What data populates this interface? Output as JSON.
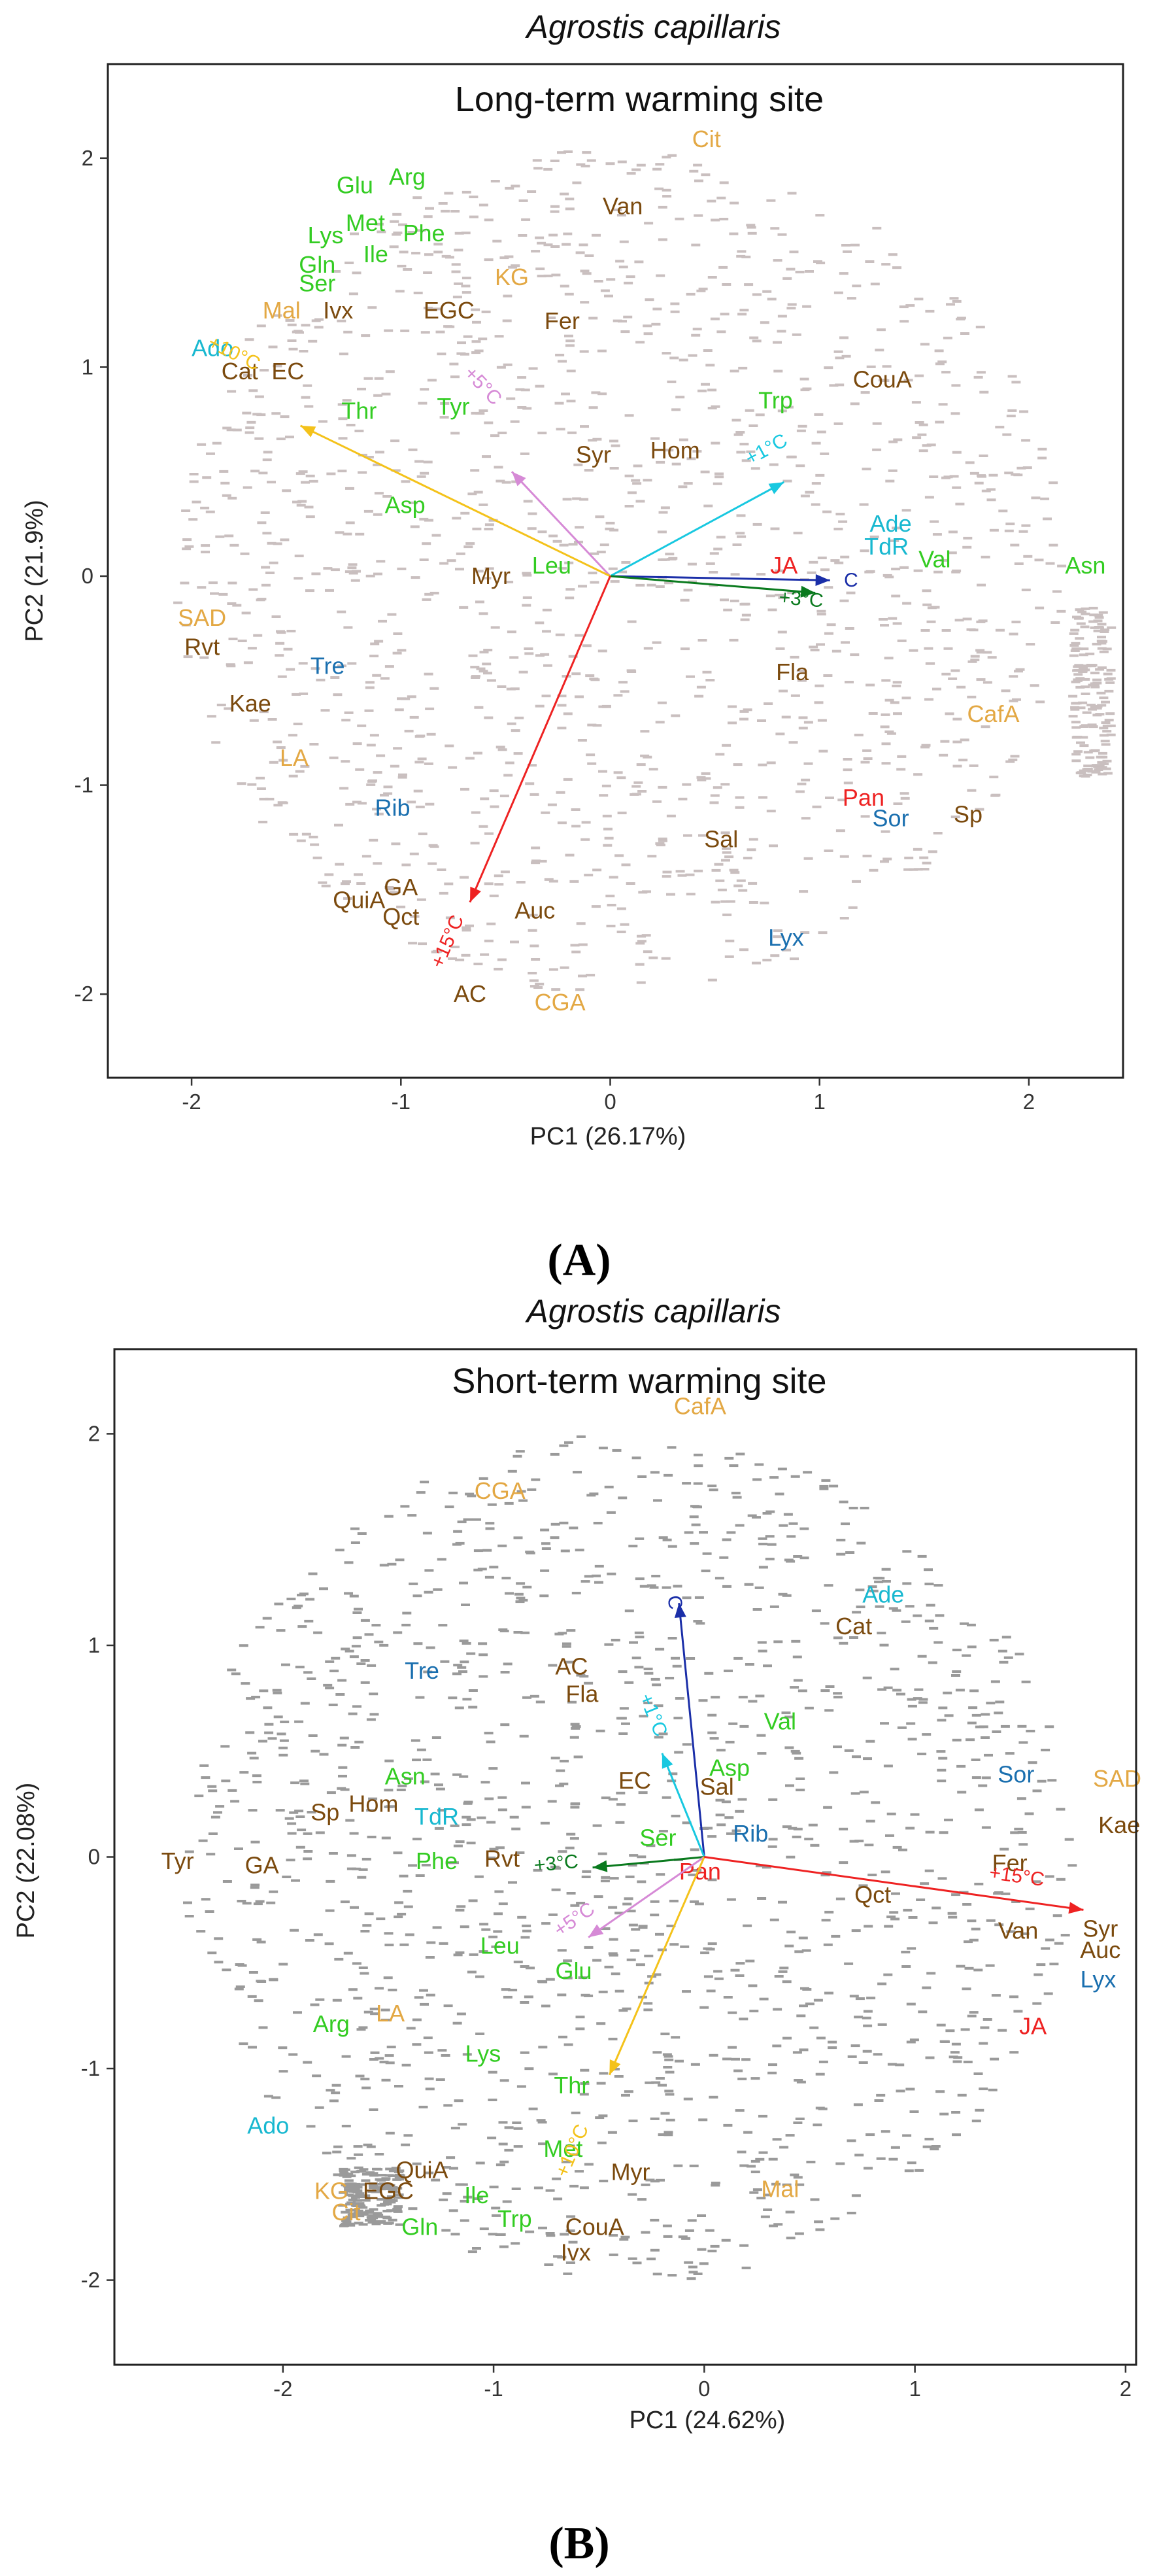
{
  "chart_data": [
    {
      "panel": "(A)",
      "type": "scatter",
      "title": "Agrostis capillaris",
      "subtitle": "Long-term warming site",
      "xlabel": "PC1 (26.17%)",
      "ylabel": "PC2 (21.9%)",
      "xlim": [
        -2.4,
        2.45
      ],
      "ylim": [
        -2.4,
        2.45
      ],
      "xticks": [
        -2,
        -1,
        0,
        1,
        2
      ],
      "yticks": [
        -2,
        -1,
        0,
        1,
        2
      ],
      "vectors": [
        {
          "label": "C",
          "x": 1.05,
          "y": -0.02,
          "color": "#1a2ea8",
          "labelX": 1.15,
          "labelY": -0.05
        },
        {
          "label": "+1°C",
          "x": 0.83,
          "y": 0.45,
          "color": "#18c8e0",
          "labelX": 0.76,
          "labelY": 0.58
        },
        {
          "label": "+3°C",
          "x": 0.98,
          "y": -0.08,
          "color": "#0a7a1e",
          "labelX": 0.91,
          "labelY": -0.14
        },
        {
          "label": "+5°C",
          "x": -0.47,
          "y": 0.5,
          "color": "#d68ad6",
          "labelX": -0.63,
          "labelY": 0.89
        },
        {
          "label": "+10°C",
          "x": -1.48,
          "y": 0.72,
          "color": "#f4c21a",
          "labelX": -1.81,
          "labelY": 1.04
        },
        {
          "label": "+15°C",
          "x": -0.67,
          "y": -1.56,
          "color": "#ee2222",
          "labelX": -0.75,
          "labelY": -1.76
        }
      ],
      "variables": [
        {
          "label": "Cit",
          "x": 0.46,
          "y": 2.09,
          "color": "#e3a844"
        },
        {
          "label": "Van",
          "x": 0.06,
          "y": 1.77,
          "color": "#7b4a0e"
        },
        {
          "label": "Glu",
          "x": -1.22,
          "y": 1.87,
          "color": "#33cc22"
        },
        {
          "label": "Arg",
          "x": -0.97,
          "y": 1.91,
          "color": "#33cc22"
        },
        {
          "label": "Met",
          "x": -1.17,
          "y": 1.69,
          "color": "#33cc22"
        },
        {
          "label": "Lys",
          "x": -1.36,
          "y": 1.63,
          "color": "#33cc22"
        },
        {
          "label": "Phe",
          "x": -0.89,
          "y": 1.64,
          "color": "#33cc22"
        },
        {
          "label": "Ile",
          "x": -1.12,
          "y": 1.54,
          "color": "#33cc22"
        },
        {
          "label": "Gln",
          "x": -1.4,
          "y": 1.49,
          "color": "#33cc22"
        },
        {
          "label": "Ser",
          "x": -1.4,
          "y": 1.4,
          "color": "#33cc22"
        },
        {
          "label": "KG",
          "x": -0.47,
          "y": 1.43,
          "color": "#e3a844"
        },
        {
          "label": "Mal",
          "x": -1.57,
          "y": 1.27,
          "color": "#e3a844"
        },
        {
          "label": "Ivx",
          "x": -1.3,
          "y": 1.27,
          "color": "#7b4a0e"
        },
        {
          "label": "EGC",
          "x": -0.77,
          "y": 1.27,
          "color": "#7b4a0e"
        },
        {
          "label": "Fer",
          "x": -0.23,
          "y": 1.22,
          "color": "#7b4a0e"
        },
        {
          "label": "Ado",
          "x": -1.9,
          "y": 1.09,
          "color": "#18b8d0"
        },
        {
          "label": "Cat",
          "x": -1.77,
          "y": 0.98,
          "color": "#7b4a0e"
        },
        {
          "label": "EC",
          "x": -1.54,
          "y": 0.98,
          "color": "#7b4a0e"
        },
        {
          "label": "CouA",
          "x": 1.3,
          "y": 0.94,
          "color": "#7b4a0e"
        },
        {
          "label": "Trp",
          "x": 0.79,
          "y": 0.84,
          "color": "#33cc22"
        },
        {
          "label": "Thr",
          "x": -1.2,
          "y": 0.79,
          "color": "#33cc22"
        },
        {
          "label": "Tyr",
          "x": -0.75,
          "y": 0.81,
          "color": "#33cc22"
        },
        {
          "label": "Syr",
          "x": -0.08,
          "y": 0.58,
          "color": "#7b4a0e"
        },
        {
          "label": "Hom",
          "x": 0.31,
          "y": 0.6,
          "color": "#7b4a0e"
        },
        {
          "label": "Asp",
          "x": -0.98,
          "y": 0.34,
          "color": "#33cc22"
        },
        {
          "label": "Ade",
          "x": 1.34,
          "y": 0.25,
          "color": "#18b8d0"
        },
        {
          "label": "TdR",
          "x": 1.32,
          "y": 0.14,
          "color": "#18b8d0"
        },
        {
          "label": "Val",
          "x": 1.55,
          "y": 0.08,
          "color": "#33cc22"
        },
        {
          "label": "Asn",
          "x": 2.27,
          "y": 0.05,
          "color": "#33cc22"
        },
        {
          "label": "Leu",
          "x": -0.28,
          "y": 0.05,
          "color": "#33cc22"
        },
        {
          "label": "JA",
          "x": 0.83,
          "y": 0.05,
          "color": "#ee2222"
        },
        {
          "label": "Myr",
          "x": -0.57,
          "y": 0.0,
          "color": "#7b4a0e"
        },
        {
          "label": "SAD",
          "x": -1.95,
          "y": -0.2,
          "color": "#e3a844"
        },
        {
          "label": "Rvt",
          "x": -1.95,
          "y": -0.34,
          "color": "#7b4a0e"
        },
        {
          "label": "Tre",
          "x": -1.35,
          "y": -0.43,
          "color": "#1a6faf"
        },
        {
          "label": "Fla",
          "x": 0.87,
          "y": -0.46,
          "color": "#7b4a0e"
        },
        {
          "label": "Kae",
          "x": -1.72,
          "y": -0.61,
          "color": "#7b4a0e"
        },
        {
          "label": "CafA",
          "x": 1.83,
          "y": -0.66,
          "color": "#e3a844"
        },
        {
          "label": "LA",
          "x": -1.51,
          "y": -0.87,
          "color": "#e3a844"
        },
        {
          "label": "Pan",
          "x": 1.21,
          "y": -1.06,
          "color": "#ee2222"
        },
        {
          "label": "Sor",
          "x": 1.34,
          "y": -1.16,
          "color": "#1a6faf"
        },
        {
          "label": "Sp",
          "x": 1.71,
          "y": -1.14,
          "color": "#7b4a0e"
        },
        {
          "label": "Rib",
          "x": -1.04,
          "y": -1.11,
          "color": "#1a6faf"
        },
        {
          "label": "Sal",
          "x": 0.53,
          "y": -1.26,
          "color": "#7b4a0e"
        },
        {
          "label": "GA",
          "x": -1.0,
          "y": -1.49,
          "color": "#7b4a0e"
        },
        {
          "label": "QuiA",
          "x": -1.2,
          "y": -1.55,
          "color": "#7b4a0e"
        },
        {
          "label": "Qct",
          "x": -1.0,
          "y": -1.63,
          "color": "#7b4a0e"
        },
        {
          "label": "Auc",
          "x": -0.36,
          "y": -1.6,
          "color": "#7b4a0e"
        },
        {
          "label": "Lyx",
          "x": 0.84,
          "y": -1.73,
          "color": "#1a6faf"
        },
        {
          "label": "AC",
          "x": -0.67,
          "y": -2.0,
          "color": "#7b4a0e"
        },
        {
          "label": "CGA",
          "x": -0.24,
          "y": -2.04,
          "color": "#e3a844"
        }
      ]
    },
    {
      "panel": "(B)",
      "type": "scatter",
      "title": "Agrostis capillaris",
      "subtitle": "Short-term warming site",
      "xlabel": "PC1 (24.62%)",
      "ylabel": "PC2 (22.08%)",
      "xlim": [
        -2.8,
        2.05
      ],
      "ylim": [
        -2.4,
        2.4
      ],
      "xticks": [
        -2,
        -1,
        0,
        1,
        2
      ],
      "yticks": [
        -2,
        -1,
        0,
        1,
        2
      ],
      "vectors": [
        {
          "label": "C",
          "x": -0.12,
          "y": 1.2,
          "color": "#1a2ea8",
          "labelX": -0.17,
          "labelY": 1.2
        },
        {
          "label": "+1°C",
          "x": -0.2,
          "y": 0.49,
          "color": "#18c8e0",
          "labelX": -0.27,
          "labelY": 0.66
        },
        {
          "label": "+3°C",
          "x": -0.53,
          "y": -0.05,
          "color": "#0a7a1e",
          "labelX": -0.7,
          "labelY": -0.06
        },
        {
          "label": "+5°C",
          "x": -0.55,
          "y": -0.38,
          "color": "#d68ad6",
          "labelX": -0.6,
          "labelY": -0.32
        },
        {
          "label": "+10°C",
          "x": -0.45,
          "y": -1.03,
          "color": "#f4c21a",
          "labelX": -0.6,
          "labelY": -1.4
        },
        {
          "label": "+15°C",
          "x": 1.8,
          "y": -0.25,
          "color": "#ee2222",
          "labelX": 1.48,
          "labelY": -0.12
        }
      ],
      "variables": [
        {
          "label": "CafA",
          "x": -0.02,
          "y": 2.13,
          "color": "#e3a844"
        },
        {
          "label": "CGA",
          "x": -0.97,
          "y": 1.73,
          "color": "#e3a844"
        },
        {
          "label": "Ade",
          "x": 0.85,
          "y": 1.24,
          "color": "#18b8d0"
        },
        {
          "label": "Cat",
          "x": 0.71,
          "y": 1.09,
          "color": "#7b4a0e"
        },
        {
          "label": "Tre",
          "x": -1.34,
          "y": 0.88,
          "color": "#1a6faf"
        },
        {
          "label": "AC",
          "x": -0.63,
          "y": 0.9,
          "color": "#7b4a0e"
        },
        {
          "label": "Fla",
          "x": -0.58,
          "y": 0.77,
          "color": "#7b4a0e"
        },
        {
          "label": "Val",
          "x": 0.36,
          "y": 0.64,
          "color": "#33cc22"
        },
        {
          "label": "Asp",
          "x": 0.12,
          "y": 0.42,
          "color": "#33cc22"
        },
        {
          "label": "EC",
          "x": -0.33,
          "y": 0.36,
          "color": "#7b4a0e"
        },
        {
          "label": "Sal",
          "x": 0.06,
          "y": 0.33,
          "color": "#7b4a0e"
        },
        {
          "label": "Sor",
          "x": 1.48,
          "y": 0.39,
          "color": "#1a6faf"
        },
        {
          "label": "SAD",
          "x": 1.96,
          "y": 0.37,
          "color": "#e3a844"
        },
        {
          "label": "Asn",
          "x": -1.42,
          "y": 0.38,
          "color": "#33cc22"
        },
        {
          "label": "Hom",
          "x": -1.57,
          "y": 0.25,
          "color": "#7b4a0e"
        },
        {
          "label": "Sp",
          "x": -1.8,
          "y": 0.21,
          "color": "#7b4a0e"
        },
        {
          "label": "TdR",
          "x": -1.27,
          "y": 0.19,
          "color": "#18b8d0"
        },
        {
          "label": "Kae",
          "x": 1.97,
          "y": 0.15,
          "color": "#7b4a0e"
        },
        {
          "label": "Ser",
          "x": -0.22,
          "y": 0.09,
          "color": "#33cc22"
        },
        {
          "label": "Rib",
          "x": 0.22,
          "y": 0.11,
          "color": "#1a6faf"
        },
        {
          "label": "Tyr",
          "x": -2.5,
          "y": -0.02,
          "color": "#7b4a0e"
        },
        {
          "label": "GA",
          "x": -2.1,
          "y": -0.04,
          "color": "#7b4a0e"
        },
        {
          "label": "Phe",
          "x": -1.27,
          "y": -0.02,
          "color": "#33cc22"
        },
        {
          "label": "Rvt",
          "x": -0.96,
          "y": -0.01,
          "color": "#7b4a0e"
        },
        {
          "label": "Fer",
          "x": 1.45,
          "y": -0.03,
          "color": "#7b4a0e"
        },
        {
          "label": "Pan",
          "x": -0.02,
          "y": -0.07,
          "color": "#ee2222"
        },
        {
          "label": "Qct",
          "x": 0.8,
          "y": -0.18,
          "color": "#7b4a0e"
        },
        {
          "label": "Syr",
          "x": 1.88,
          "y": -0.34,
          "color": "#7b4a0e"
        },
        {
          "label": "Van",
          "x": 1.49,
          "y": -0.35,
          "color": "#7b4a0e"
        },
        {
          "label": "Auc",
          "x": 1.88,
          "y": -0.44,
          "color": "#7b4a0e"
        },
        {
          "label": "Leu",
          "x": -0.97,
          "y": -0.42,
          "color": "#33cc22"
        },
        {
          "label": "Glu",
          "x": -0.62,
          "y": -0.54,
          "color": "#33cc22"
        },
        {
          "label": "Lyx",
          "x": 1.87,
          "y": -0.58,
          "color": "#1a6faf"
        },
        {
          "label": "Arg",
          "x": -1.77,
          "y": -0.79,
          "color": "#33cc22"
        },
        {
          "label": "LA",
          "x": -1.49,
          "y": -0.74,
          "color": "#e3a844"
        },
        {
          "label": "JA",
          "x": 1.56,
          "y": -0.8,
          "color": "#ee2222"
        },
        {
          "label": "Lys",
          "x": -1.05,
          "y": -0.93,
          "color": "#33cc22"
        },
        {
          "label": "Thr",
          "x": -0.63,
          "y": -1.08,
          "color": "#33cc22"
        },
        {
          "label": "Ado",
          "x": -2.07,
          "y": -1.27,
          "color": "#18b8d0"
        },
        {
          "label": "Met",
          "x": -0.67,
          "y": -1.38,
          "color": "#33cc22"
        },
        {
          "label": "QuiA",
          "x": -1.34,
          "y": -1.48,
          "color": "#7b4a0e"
        },
        {
          "label": "Myr",
          "x": -0.35,
          "y": -1.49,
          "color": "#7b4a0e"
        },
        {
          "label": "KG",
          "x": -1.77,
          "y": -1.58,
          "color": "#e3a844"
        },
        {
          "label": "EGC",
          "x": -1.5,
          "y": -1.58,
          "color": "#7b4a0e"
        },
        {
          "label": "Ile",
          "x": -1.08,
          "y": -1.6,
          "color": "#33cc22"
        },
        {
          "label": "Mal",
          "x": 0.36,
          "y": -1.57,
          "color": "#e3a844"
        },
        {
          "label": "Cit",
          "x": -1.7,
          "y": -1.68,
          "color": "#e3a844"
        },
        {
          "label": "Trp",
          "x": -0.9,
          "y": -1.71,
          "color": "#33cc22"
        },
        {
          "label": "Gln",
          "x": -1.35,
          "y": -1.75,
          "color": "#33cc22"
        },
        {
          "label": "CouA",
          "x": -0.52,
          "y": -1.75,
          "color": "#7b4a0e"
        },
        {
          "label": "Ivx",
          "x": -0.61,
          "y": -1.87,
          "color": "#7b4a0e"
        }
      ]
    }
  ]
}
